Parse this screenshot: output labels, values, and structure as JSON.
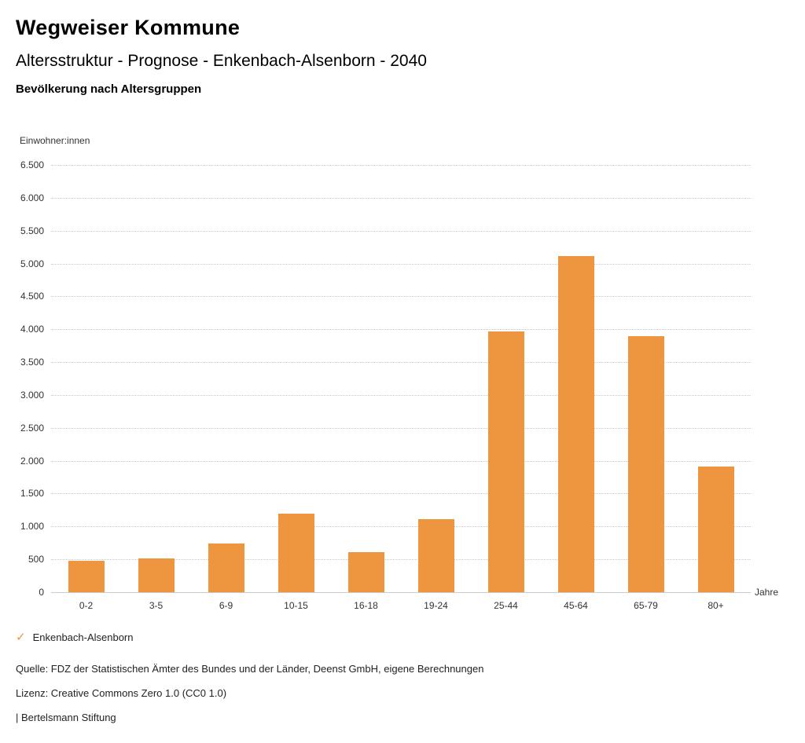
{
  "header": {
    "title": "Wegweiser Kommune",
    "subtitle": "Altersstruktur - Prognose - Enkenbach-Alsenborn - 2040",
    "chart_heading": "Bevölkerung nach Altersgruppen"
  },
  "chart_data": {
    "type": "bar",
    "title": "Bevölkerung nach Altersgruppen",
    "xlabel": "Jahre",
    "ylabel": "Einwohner:innen",
    "categories": [
      "0-2",
      "3-5",
      "6-9",
      "10-15",
      "16-18",
      "19-24",
      "25-44",
      "45-64",
      "65-79",
      "80+"
    ],
    "values": [
      480,
      510,
      745,
      1200,
      615,
      1110,
      3965,
      5110,
      3900,
      1910
    ],
    "ylim": [
      0,
      6500
    ],
    "ytick_step": 500,
    "yticks": [
      "0",
      "500",
      "1.000",
      "1.500",
      "2.000",
      "2.500",
      "3.000",
      "3.500",
      "4.000",
      "4.500",
      "5.000",
      "5.500",
      "6.000",
      "6.500"
    ],
    "grid": true,
    "bar_color": "#EE9540",
    "legend": [
      {
        "label": "Enkenbach-Alsenborn",
        "color": "#EE9540",
        "check_glyph": "✓"
      }
    ],
    "legend_position": "bottom"
  },
  "footer": {
    "source": "Quelle: FDZ der Statistischen Ämter des Bundes und der Länder, Deenst GmbH, eigene Berechnungen",
    "license": "Lizenz: Creative Commons Zero 1.0 (CC0 1.0)",
    "brand": "| Bertelsmann Stiftung"
  }
}
